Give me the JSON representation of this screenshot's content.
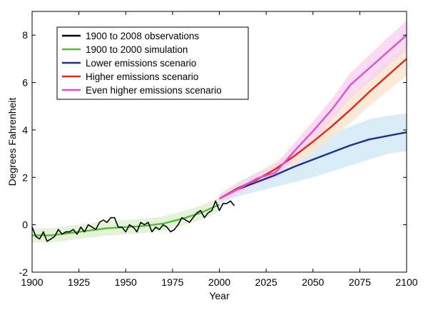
{
  "chart_data": {
    "type": "line",
    "xlabel": "Year",
    "ylabel": "Degrees Fahrenheit",
    "xlim": [
      1900,
      2100
    ],
    "ylim": [
      -2,
      9
    ],
    "x_ticks": [
      1900,
      1925,
      1950,
      1975,
      2000,
      2025,
      2050,
      2075,
      2100
    ],
    "y_ticks": [
      -2,
      0,
      2,
      4,
      6,
      8
    ],
    "grid": false,
    "legend_position": "top-left",
    "legend": [
      {
        "label": "1900 to 2008 observations",
        "color": "#000000",
        "series": "obs"
      },
      {
        "label": "1900 to 2000 simulation",
        "color": "#55bb33",
        "series": "sim"
      },
      {
        "label": "Lower emissions scenario",
        "color": "#1f2f8a",
        "series": "low"
      },
      {
        "label": "Higher emissions scenario",
        "color": "#e8261c",
        "series": "high"
      },
      {
        "label": "Even higher emissions scenario",
        "color": "#e24fd0",
        "series": "even"
      }
    ],
    "series": [
      {
        "id": "obs",
        "name": "1900 to 2008 observations",
        "color": "#000000",
        "x": [
          1900,
          1902,
          1904,
          1906,
          1908,
          1910,
          1912,
          1914,
          1916,
          1918,
          1920,
          1922,
          1924,
          1926,
          1928,
          1930,
          1932,
          1934,
          1936,
          1938,
          1940,
          1942,
          1944,
          1946,
          1948,
          1950,
          1952,
          1954,
          1956,
          1958,
          1960,
          1962,
          1964,
          1966,
          1968,
          1970,
          1972,
          1974,
          1976,
          1978,
          1980,
          1982,
          1984,
          1986,
          1988,
          1990,
          1992,
          1994,
          1996,
          1998,
          2000,
          2002,
          2004,
          2006,
          2008
        ],
        "y": [
          -0.1,
          -0.5,
          -0.6,
          -0.3,
          -0.7,
          -0.6,
          -0.5,
          -0.2,
          -0.4,
          -0.3,
          -0.3,
          -0.2,
          -0.4,
          -0.1,
          -0.3,
          0.0,
          -0.1,
          -0.2,
          0.1,
          0.2,
          0.1,
          0.3,
          0.3,
          -0.1,
          -0.1,
          -0.3,
          0.0,
          -0.1,
          -0.3,
          0.1,
          0.0,
          0.1,
          -0.3,
          -0.1,
          -0.2,
          0.0,
          -0.1,
          -0.3,
          -0.2,
          0.0,
          0.3,
          0.2,
          0.1,
          0.3,
          0.5,
          0.6,
          0.3,
          0.5,
          0.6,
          1.0,
          0.6,
          0.9,
          0.9,
          1.0,
          0.8
        ]
      },
      {
        "id": "sim",
        "name": "1900 to 2000 simulation",
        "color": "#55bb33",
        "x": [
          1900,
          1910,
          1920,
          1930,
          1940,
          1950,
          1960,
          1970,
          1980,
          1990,
          2000
        ],
        "y": [
          -0.45,
          -0.45,
          -0.35,
          -0.25,
          -0.15,
          -0.1,
          -0.05,
          0.05,
          0.25,
          0.5,
          0.85
        ],
        "band": {
          "lower": [
            -0.75,
            -0.75,
            -0.65,
            -0.55,
            -0.45,
            -0.4,
            -0.35,
            -0.25,
            -0.05,
            0.2,
            0.55
          ],
          "upper": [
            -0.15,
            -0.15,
            -0.05,
            0.05,
            0.15,
            0.2,
            0.25,
            0.35,
            0.55,
            0.8,
            1.15
          ],
          "color": "#dcefcf"
        }
      },
      {
        "id": "low",
        "name": "Lower emissions scenario",
        "color": "#1f2f8a",
        "x": [
          2000,
          2010,
          2020,
          2030,
          2040,
          2050,
          2060,
          2070,
          2080,
          2090,
          2100
        ],
        "y": [
          1.1,
          1.5,
          1.8,
          2.1,
          2.45,
          2.75,
          3.05,
          3.35,
          3.6,
          3.75,
          3.9
        ],
        "band": {
          "lower": [
            0.9,
            1.2,
            1.4,
            1.6,
            1.8,
            2.0,
            2.25,
            2.5,
            2.75,
            3.0,
            3.1
          ],
          "upper": [
            1.3,
            1.8,
            2.2,
            2.6,
            3.0,
            3.5,
            3.85,
            4.15,
            4.45,
            4.6,
            4.7
          ],
          "color": "#cfe9f7"
        }
      },
      {
        "id": "high",
        "name": "Higher emissions scenario",
        "color": "#e8261c",
        "x": [
          2000,
          2010,
          2020,
          2030,
          2040,
          2050,
          2060,
          2070,
          2080,
          2090,
          2100
        ],
        "y": [
          1.1,
          1.55,
          1.9,
          2.35,
          2.9,
          3.5,
          4.15,
          4.85,
          5.6,
          6.3,
          7.0
        ],
        "band": {
          "lower": [
            0.95,
            1.35,
            1.65,
            2.05,
            2.5,
            3.05,
            3.65,
            4.3,
            5.0,
            5.65,
            6.3
          ],
          "upper": [
            1.25,
            1.75,
            2.15,
            2.65,
            3.3,
            3.95,
            4.65,
            5.4,
            6.2,
            6.95,
            7.7
          ],
          "color": "#fde5cc"
        }
      },
      {
        "id": "even",
        "name": "Even higher emissions scenario",
        "color": "#e24fd0",
        "x": [
          2000,
          2010,
          2020,
          2030,
          2040,
          2050,
          2060,
          2070,
          2080,
          2090,
          2100
        ],
        "y": [
          1.1,
          1.5,
          1.95,
          2.2,
          3.1,
          3.95,
          4.85,
          5.9,
          6.6,
          7.3,
          8.0
        ],
        "band": {
          "lower": [
            0.95,
            1.3,
            1.7,
            1.95,
            2.75,
            3.55,
            4.4,
            5.35,
            6.0,
            6.7,
            7.35
          ],
          "upper": [
            1.25,
            1.7,
            2.2,
            2.5,
            3.45,
            4.35,
            5.3,
            6.4,
            7.15,
            7.9,
            8.6
          ],
          "color": "#f8d3ef"
        }
      }
    ]
  }
}
